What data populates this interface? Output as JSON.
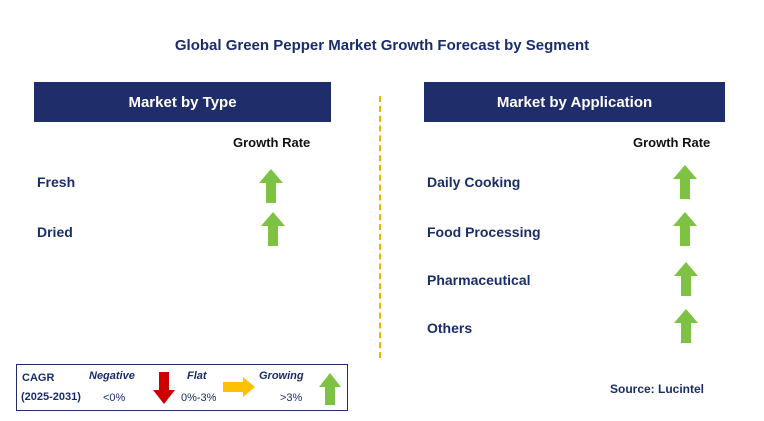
{
  "title": "Global Green Pepper Market Growth Forecast by Segment",
  "type_panel": {
    "header": "Market by Type",
    "growth_label": "Growth Rate",
    "rows": [
      {
        "label": "Fresh",
        "trend": "growing"
      },
      {
        "label": "Dried",
        "trend": "growing"
      }
    ]
  },
  "application_panel": {
    "header": "Market by Application",
    "growth_label": "Growth Rate",
    "rows": [
      {
        "label": "Daily Cooking",
        "trend": "growing"
      },
      {
        "label": "Food Processing",
        "trend": "growing"
      },
      {
        "label": "Pharmaceutical",
        "trend": "growing"
      },
      {
        "label": "Others",
        "trend": "growing"
      }
    ]
  },
  "legend": {
    "cagr": "CAGR",
    "period": "(2025-2031)",
    "negative": "Negative",
    "negative_range": "<0%",
    "flat": "Flat",
    "flat_range": "0%-3%",
    "growing": "Growing",
    "growing_range": ">3%"
  },
  "source": "Source: Lucintel",
  "colors": {
    "header_bg": "#1f2d6b",
    "text_navy": "#1a2d6b",
    "growing": "#7dc242",
    "negative": "#cc0000",
    "flat": "#ffc000",
    "divider": "#f0b400"
  }
}
